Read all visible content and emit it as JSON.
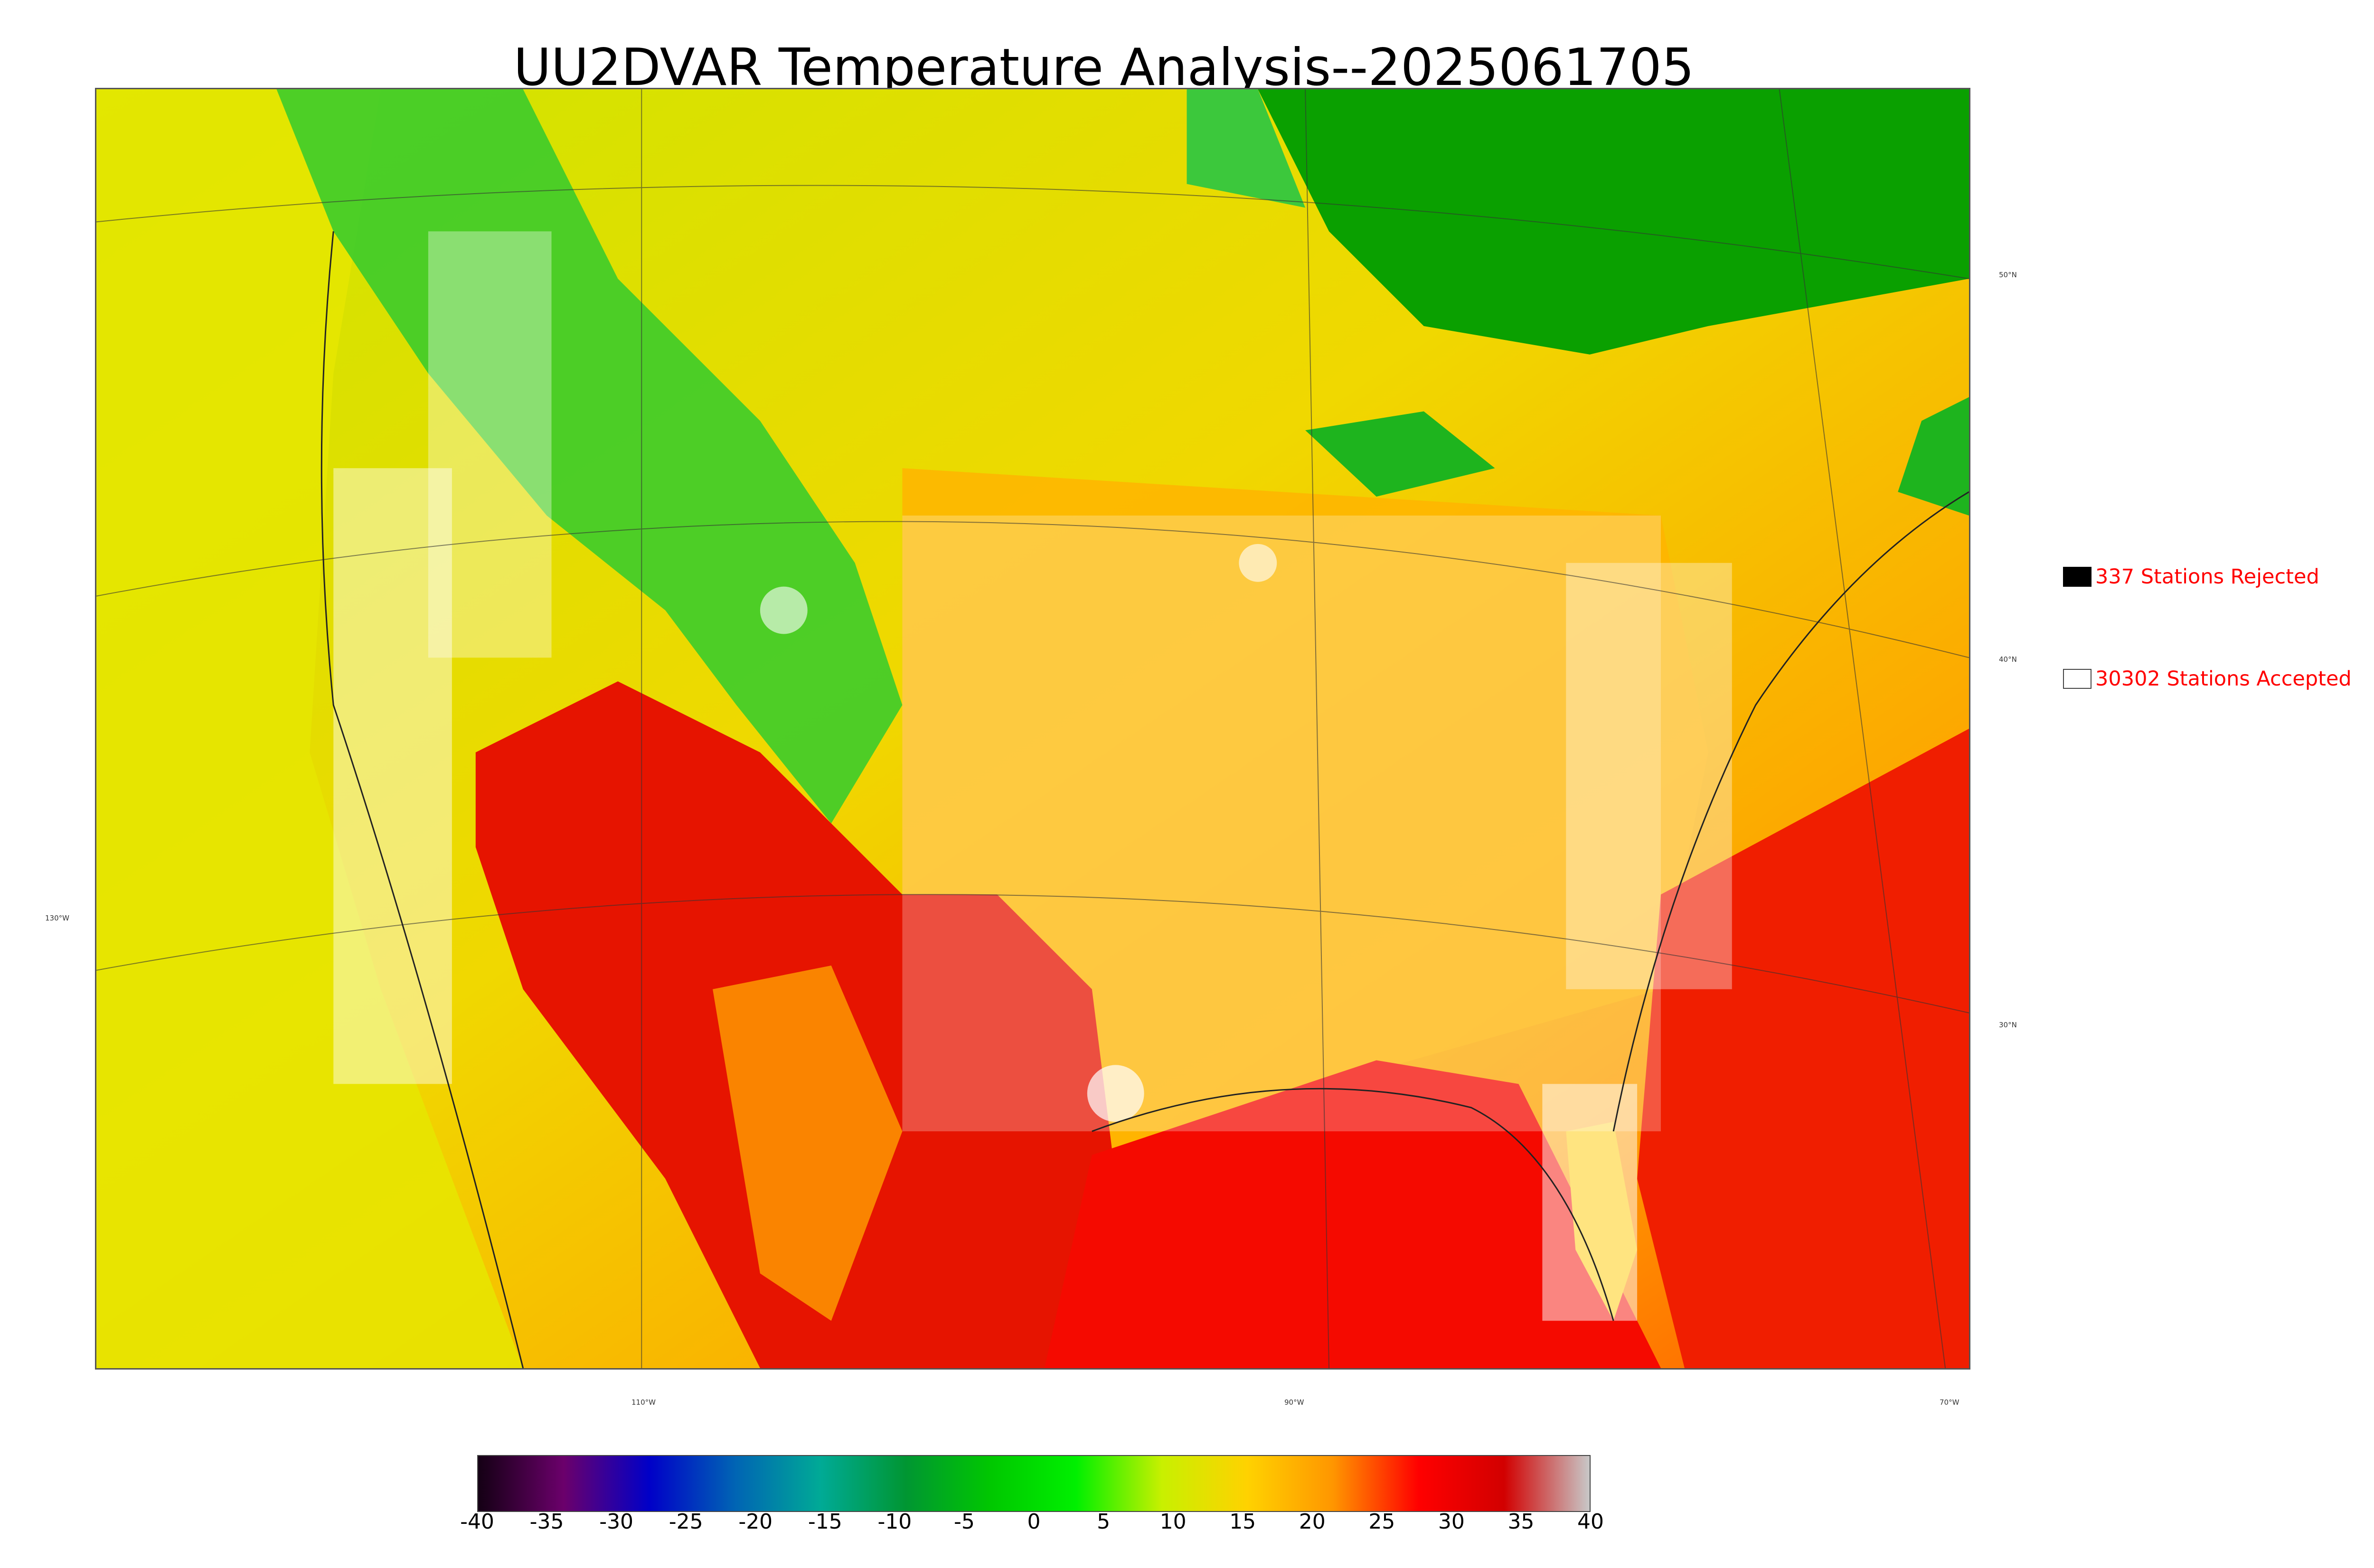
{
  "title": "UU2DVAR Temperature Analysis--2025061705",
  "legend": {
    "rejected": {
      "label": "337 Stations Rejected",
      "color": "#000000"
    },
    "accepted": {
      "label": "30302 Stations Accepted",
      "color": "#ffffff"
    }
  },
  "lat_labels": [
    "50°N",
    "40°N",
    "30°N"
  ],
  "lon_labels": [
    "130°W",
    "110°W",
    "90°W",
    "70°W"
  ],
  "colorbar": {
    "ticks": [
      "-40",
      "-35",
      "-30",
      "-25",
      "-20",
      "-15",
      "-10",
      "-5",
      "0",
      "5",
      "10",
      "15",
      "20",
      "25",
      "30",
      "35",
      "40"
    ],
    "colors": [
      "#140014",
      "#6b006b",
      "#0000c8",
      "#0064b4",
      "#00aa96",
      "#009632",
      "#00c800",
      "#00f000",
      "#c8f000",
      "#ffd200",
      "#ff9600",
      "#ff0000",
      "#d20000",
      "#c8c8c8"
    ]
  },
  "map_colors": {
    "cool": "#22b422",
    "mild": "#e6e600",
    "warm": "#ffb400",
    "hot": "#f01e00",
    "canada_green": "#0aa000"
  }
}
